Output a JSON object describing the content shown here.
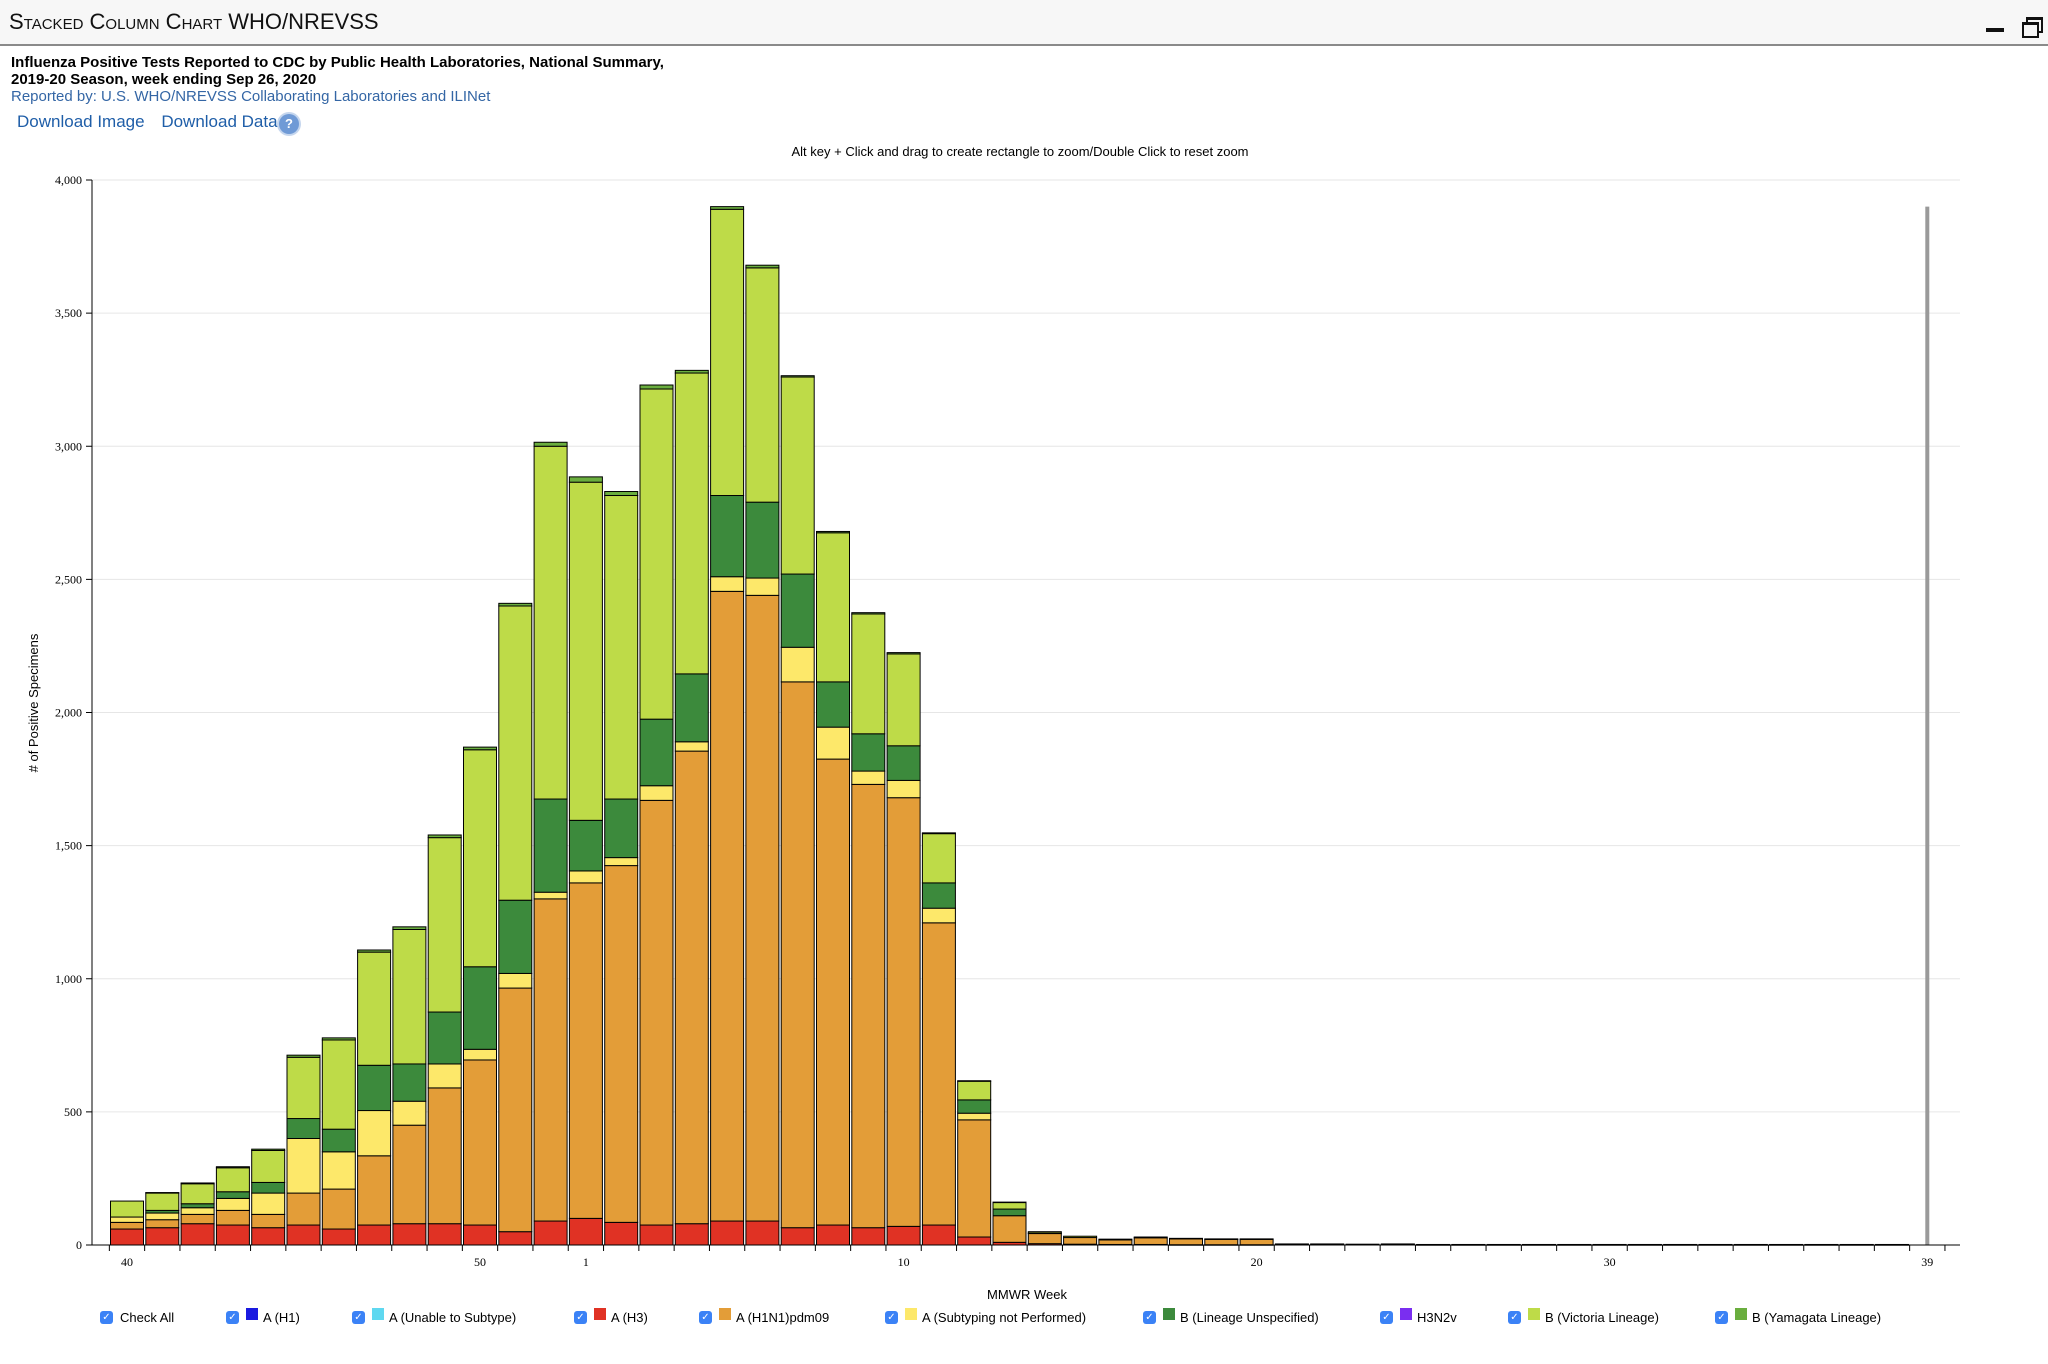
{
  "window": {
    "title": "Stacked Column Chart WHO/NREVSS"
  },
  "header": {
    "title": "Influenza Positive Tests Reported to CDC by Public Health Laboratories, National Summary,\n2019-20 Season, week ending Sep 26, 2020",
    "subtitle": "Reported by: U.S. WHO/NREVSS Collaborating Laboratories and ILINet",
    "download_image": "Download Image",
    "download_data": "Download Data",
    "help_label": "?",
    "zoom_hint": "Alt key + Click and drag to create rectangle to zoom/Double Click to reset zoom"
  },
  "legend": {
    "check_all": "Check All",
    "check_mark": "✓",
    "items": [
      {
        "label": "A (H1)",
        "color": "#1a1ae0"
      },
      {
        "label": "A (Unable to Subtype)",
        "color": "#5fd8f0"
      },
      {
        "label": "A (H3)",
        "color": "#e03224"
      },
      {
        "label": "A (H1N1)pdm09",
        "color": "#e39d38"
      },
      {
        "label": "A (Subtyping not Performed)",
        "color": "#fde86a"
      },
      {
        "label": "B (Lineage Unspecified)",
        "color": "#3c8a3c"
      },
      {
        "label": "H3N2v",
        "color": "#7a2ef0"
      },
      {
        "label": "B (Victoria Lineage)",
        "color": "#bedb48"
      },
      {
        "label": "B (Yamagata Lineage)",
        "color": "#6aae3e"
      }
    ]
  },
  "chart_data": {
    "type": "bar",
    "stacked": true,
    "title": "Influenza Positive Tests Reported to CDC by Public Health Laboratories, National Summary, 2019-20 Season, week ending Sep 26, 2020",
    "xlabel": "MMWR Week",
    "ylabel": "# of Positive Specimens",
    "ylim": [
      0,
      4000
    ],
    "yticks": [
      0,
      500,
      1000,
      1500,
      2000,
      2500,
      3000,
      3500,
      4000
    ],
    "ytick_labels": [
      "0",
      "500",
      "1,000",
      "1,500",
      "2,000",
      "2,500",
      "3,000",
      "3,500",
      "4,000"
    ],
    "x_tick_labels": [
      {
        "week": 40,
        "label": "40"
      },
      {
        "week": 50,
        "label": "50"
      },
      {
        "week": 1,
        "label": "1"
      },
      {
        "week": 10,
        "label": "10"
      },
      {
        "week": 20,
        "label": "20"
      },
      {
        "week": 30,
        "label": "30"
      },
      {
        "week": 39,
        "label": "39"
      }
    ],
    "grid": true,
    "legend_position": "bottom",
    "current_week_marker": 39,
    "categories": [
      40,
      41,
      42,
      43,
      44,
      45,
      46,
      47,
      48,
      49,
      50,
      51,
      52,
      1,
      2,
      3,
      4,
      5,
      6,
      7,
      8,
      9,
      10,
      11,
      12,
      13,
      14,
      15,
      16,
      17,
      18,
      19,
      20,
      21,
      22,
      23,
      24,
      25,
      26,
      27,
      28,
      29,
      30,
      31,
      32,
      33,
      34,
      35,
      36,
      37,
      38,
      39
    ],
    "series": [
      {
        "name": "A (H1)",
        "color": "#1a1ae0",
        "values": [
          0,
          0,
          0,
          0,
          0,
          0,
          0,
          0,
          0,
          0,
          0,
          0,
          0,
          0,
          0,
          0,
          0,
          0,
          0,
          0,
          0,
          0,
          0,
          0,
          0,
          0,
          0,
          0,
          0,
          0,
          0,
          0,
          0,
          0,
          0,
          0,
          0,
          0,
          0,
          0,
          0,
          0,
          0,
          0,
          0,
          0,
          0,
          0,
          0,
          0,
          0,
          0
        ]
      },
      {
        "name": "A (Unable to Subtype)",
        "color": "#5fd8f0",
        "values": [
          0,
          0,
          0,
          0,
          0,
          0,
          0,
          0,
          0,
          0,
          0,
          0,
          0,
          0,
          0,
          0,
          0,
          0,
          0,
          0,
          0,
          0,
          0,
          0,
          0,
          0,
          0,
          0,
          0,
          0,
          0,
          0,
          0,
          0,
          0,
          0,
          0,
          0,
          0,
          0,
          0,
          0,
          0,
          0,
          0,
          0,
          0,
          0,
          0,
          0,
          0,
          0
        ]
      },
      {
        "name": "A (H3)",
        "color": "#e03224",
        "values": [
          60,
          65,
          80,
          75,
          65,
          75,
          60,
          75,
          80,
          80,
          75,
          50,
          90,
          100,
          85,
          75,
          80,
          90,
          90,
          65,
          75,
          65,
          70,
          75,
          30,
          10,
          5,
          3,
          2,
          2,
          1,
          1,
          1,
          0,
          0,
          0,
          0,
          0,
          0,
          0,
          0,
          0,
          0,
          0,
          0,
          0,
          0,
          0,
          0,
          0,
          0,
          0
        ]
      },
      {
        "name": "A (H1N1)pdm09",
        "color": "#e39d38",
        "values": [
          25,
          30,
          35,
          55,
          50,
          120,
          150,
          260,
          370,
          510,
          620,
          915,
          1210,
          1260,
          1340,
          1595,
          1775,
          2365,
          2350,
          2050,
          1750,
          1665,
          1610,
          1135,
          440,
          100,
          38,
          25,
          17,
          25,
          22,
          20,
          20,
          3,
          3,
          2,
          3,
          1,
          1,
          1,
          1,
          1,
          1,
          1,
          1,
          1,
          1,
          1,
          1,
          1,
          1,
          0
        ]
      },
      {
        "name": "A (Subtyping not Performed)",
        "color": "#fde86a",
        "values": [
          20,
          25,
          25,
          45,
          80,
          205,
          140,
          170,
          90,
          90,
          40,
          55,
          25,
          45,
          30,
          55,
          35,
          55,
          65,
          130,
          120,
          50,
          65,
          55,
          25,
          0,
          0,
          0,
          0,
          0,
          0,
          0,
          0,
          0,
          0,
          0,
          0,
          0,
          0,
          0,
          0,
          0,
          0,
          0,
          0,
          0,
          0,
          0,
          0,
          0,
          0,
          0
        ]
      },
      {
        "name": "B (Lineage Unspecified)",
        "color": "#3c8a3c",
        "values": [
          0,
          10,
          15,
          25,
          40,
          75,
          85,
          170,
          140,
          195,
          310,
          275,
          350,
          190,
          220,
          250,
          255,
          305,
          285,
          275,
          170,
          140,
          130,
          95,
          50,
          25,
          2,
          0,
          0,
          0,
          0,
          0,
          0,
          0,
          0,
          0,
          0,
          0,
          0,
          0,
          0,
          0,
          0,
          0,
          0,
          0,
          0,
          0,
          0,
          0,
          0,
          0
        ]
      },
      {
        "name": "H3N2v",
        "color": "#7a2ef0",
        "values": [
          0,
          0,
          0,
          0,
          0,
          0,
          0,
          0,
          0,
          0,
          0,
          0,
          0,
          0,
          0,
          0,
          0,
          0,
          0,
          0,
          0,
          0,
          0,
          0,
          0,
          0,
          0,
          0,
          0,
          0,
          0,
          0,
          0,
          0,
          0,
          0,
          0,
          0,
          0,
          0,
          0,
          0,
          0,
          0,
          0,
          0,
          0,
          0,
          0,
          0,
          0,
          0
        ]
      },
      {
        "name": "B (Victoria Lineage)",
        "color": "#bedb48",
        "values": [
          60,
          65,
          75,
          90,
          120,
          230,
          335,
          425,
          505,
          655,
          815,
          1105,
          1325,
          1270,
          1140,
          1240,
          1130,
          1075,
          880,
          740,
          560,
          450,
          345,
          185,
          70,
          25,
          5,
          5,
          3,
          3,
          2,
          2,
          2,
          1,
          1,
          1,
          1,
          1,
          1,
          1,
          1,
          1,
          1,
          1,
          1,
          1,
          1,
          1,
          1,
          1,
          1,
          0
        ]
      },
      {
        "name": "B (Yamagata Lineage)",
        "color": "#6aae3e",
        "values": [
          0,
          2,
          3,
          4,
          5,
          8,
          8,
          8,
          10,
          10,
          10,
          10,
          15,
          20,
          15,
          15,
          10,
          10,
          10,
          5,
          5,
          5,
          5,
          3,
          2,
          1,
          0,
          0,
          0,
          0,
          0,
          0,
          0,
          0,
          0,
          0,
          0,
          0,
          0,
          0,
          0,
          0,
          0,
          0,
          0,
          0,
          0,
          0,
          0,
          0,
          0,
          0
        ]
      }
    ]
  }
}
